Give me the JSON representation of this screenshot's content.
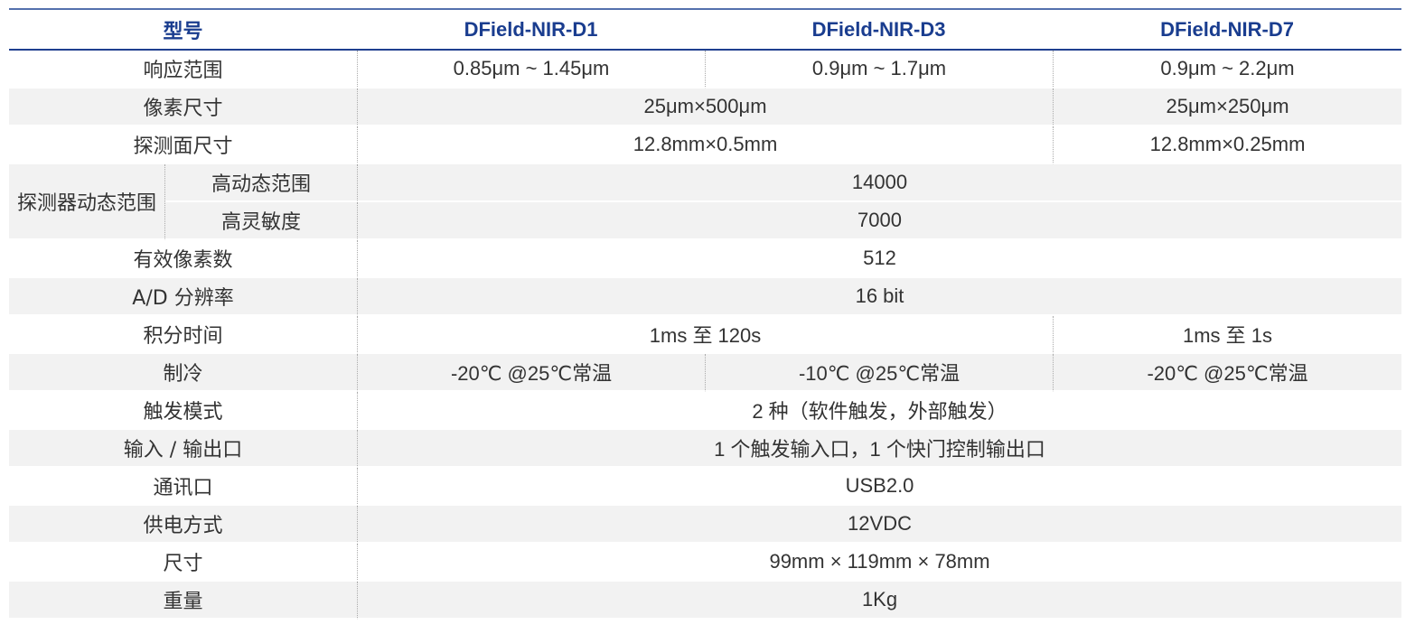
{
  "header": [
    "型号",
    "DField-NIR-D1",
    "DField-NIR-D3",
    "DField-NIR-D7"
  ],
  "rows": [
    {
      "label": "响应范围",
      "cells": [
        {
          "text": "0.85μm ~ 1.45μm",
          "span": 1
        },
        {
          "text": "0.9μm ~ 1.7μm",
          "span": 1
        },
        {
          "text": "0.9μm ~ 2.2μm",
          "span": 1
        }
      ]
    },
    {
      "label": "像素尺寸",
      "cells": [
        {
          "text": "25μm×500μm",
          "span": 2
        },
        {
          "text": "25μm×250μm",
          "span": 1
        }
      ]
    },
    {
      "label": "探测面尺寸",
      "cells": [
        {
          "text": "12.8mm×0.5mm",
          "span": 2
        },
        {
          "text": "12.8mm×0.25mm",
          "span": 1
        }
      ]
    },
    {
      "group": "探测器动态范围",
      "label": "高动态范围",
      "cells": [
        {
          "text": "14000",
          "span": 3
        }
      ]
    },
    {
      "label": "高灵敏度",
      "cells": [
        {
          "text": "7000",
          "span": 3
        }
      ]
    },
    {
      "label": "有效像素数",
      "cells": [
        {
          "text": "512",
          "span": 3
        }
      ]
    },
    {
      "label": "A/D 分辨率",
      "cells": [
        {
          "text": "16 bit",
          "span": 3
        }
      ]
    },
    {
      "label": "积分时间",
      "cells": [
        {
          "text": "1ms 至 120s",
          "span": 2
        },
        {
          "text": "1ms 至 1s",
          "span": 1
        }
      ]
    },
    {
      "label": "制冷",
      "cells": [
        {
          "text": "-20℃ @25℃常温",
          "span": 1
        },
        {
          "text": "-10℃ @25℃常温",
          "span": 1
        },
        {
          "text": "-20℃ @25℃常温",
          "span": 1
        }
      ]
    },
    {
      "label": "触发模式",
      "cells": [
        {
          "text": "2 种（软件触发，外部触发）",
          "span": 3
        }
      ]
    },
    {
      "label": "输入 / 输出口",
      "cells": [
        {
          "text": "1 个触发输入口，1 个快门控制输出口",
          "span": 3
        }
      ]
    },
    {
      "label": "通讯口",
      "cells": [
        {
          "text": "USB2.0",
          "span": 3
        }
      ]
    },
    {
      "label": "供电方式",
      "cells": [
        {
          "text": "12VDC",
          "span": 3
        }
      ]
    },
    {
      "label": "尺寸",
      "cells": [
        {
          "text": "99mm × 119mm × 78mm",
          "span": 3
        }
      ]
    },
    {
      "label": "重量",
      "cells": [
        {
          "text": "1Kg",
          "span": 3
        }
      ]
    }
  ]
}
